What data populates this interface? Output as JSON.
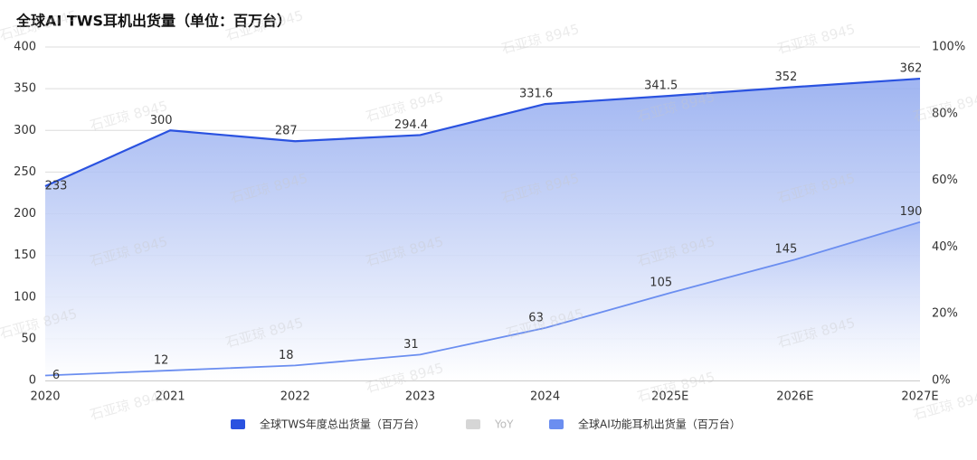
{
  "chart_data": {
    "type": "line",
    "title": "全球AI TWS耳机出货量（单位：百万台）",
    "watermark": "石亚琼 8945",
    "categories": [
      "2020",
      "2021",
      "2022",
      "2023",
      "2024",
      "2025E",
      "2026E",
      "2027E"
    ],
    "series": [
      {
        "name": "全球TWS年度总出货量（百万台）",
        "color": "#2a52e0",
        "values": [
          233,
          300,
          287,
          294.4,
          331.6,
          341.5,
          352,
          362
        ]
      },
      {
        "name": "YoY",
        "color": "#d6d6d6",
        "axis": "y2",
        "values": [
          null,
          null,
          null,
          null,
          null,
          null,
          null,
          null
        ]
      },
      {
        "name": "全球AI功能耳机出货量（百万台）",
        "color": "#6b8ef0",
        "values": [
          6,
          12,
          18,
          31,
          63,
          105,
          145,
          190
        ]
      }
    ],
    "ylim": [
      0,
      400
    ],
    "yticks": [
      0,
      50,
      100,
      150,
      200,
      250,
      300,
      350,
      400
    ],
    "y2lim": [
      0,
      100
    ],
    "y2ticks": [
      {
        "value": 0,
        "label": "0%"
      },
      {
        "value": 20,
        "label": "20%"
      },
      {
        "value": 40,
        "label": "40%"
      },
      {
        "value": 60,
        "label": "60%"
      },
      {
        "value": 80,
        "label": "80%"
      },
      {
        "value": 100,
        "label": "100%"
      }
    ],
    "grid": true,
    "legend": "bottom"
  }
}
